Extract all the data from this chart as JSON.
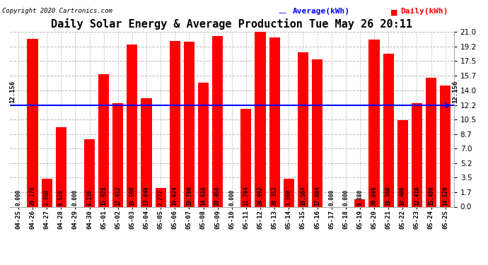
{
  "title": "Daily Solar Energy & Average Production Tue May 26 20:11",
  "copyright": "Copyright 2020 Cartronics.com",
  "avg_label": "Average(kWh)",
  "daily_label": "Daily(kWh)",
  "avg_value": 12.156,
  "categories": [
    "04-25",
    "04-26",
    "04-27",
    "04-28",
    "04-29",
    "04-30",
    "05-01",
    "05-02",
    "05-03",
    "05-04",
    "05-05",
    "05-06",
    "05-07",
    "05-08",
    "05-09",
    "05-10",
    "05-11",
    "05-12",
    "05-13",
    "05-14",
    "05-15",
    "05-16",
    "05-17",
    "05-18",
    "05-19",
    "05-20",
    "05-21",
    "05-22",
    "05-23",
    "05-24",
    "05-25"
  ],
  "values": [
    0.0,
    20.176,
    3.368,
    9.528,
    0.0,
    8.136,
    15.928,
    12.412,
    19.5,
    13.04,
    2.272,
    19.924,
    19.78,
    14.916,
    20.456,
    0.0,
    11.784,
    20.992,
    20.352,
    3.36,
    18.564,
    17.664,
    0.0,
    0.0,
    0.88,
    20.088,
    18.36,
    10.4,
    12.416,
    15.496,
    14.52
  ],
  "bar_color": "#ff0000",
  "avg_line_color": "#0000ff",
  "yticks": [
    0.0,
    1.7,
    3.5,
    5.2,
    7.0,
    8.7,
    10.5,
    12.2,
    14.0,
    15.7,
    17.5,
    19.2,
    21.0
  ],
  "ylim": [
    0.0,
    21.0
  ],
  "bg_color": "#ffffff",
  "grid_color": "#bbbbbb",
  "title_fontsize": 11,
  "bar_label_fontsize": 5.5,
  "copyright_fontsize": 6.5,
  "legend_fontsize": 8,
  "tick_fontsize": 7.5,
  "xtick_fontsize": 6.5
}
